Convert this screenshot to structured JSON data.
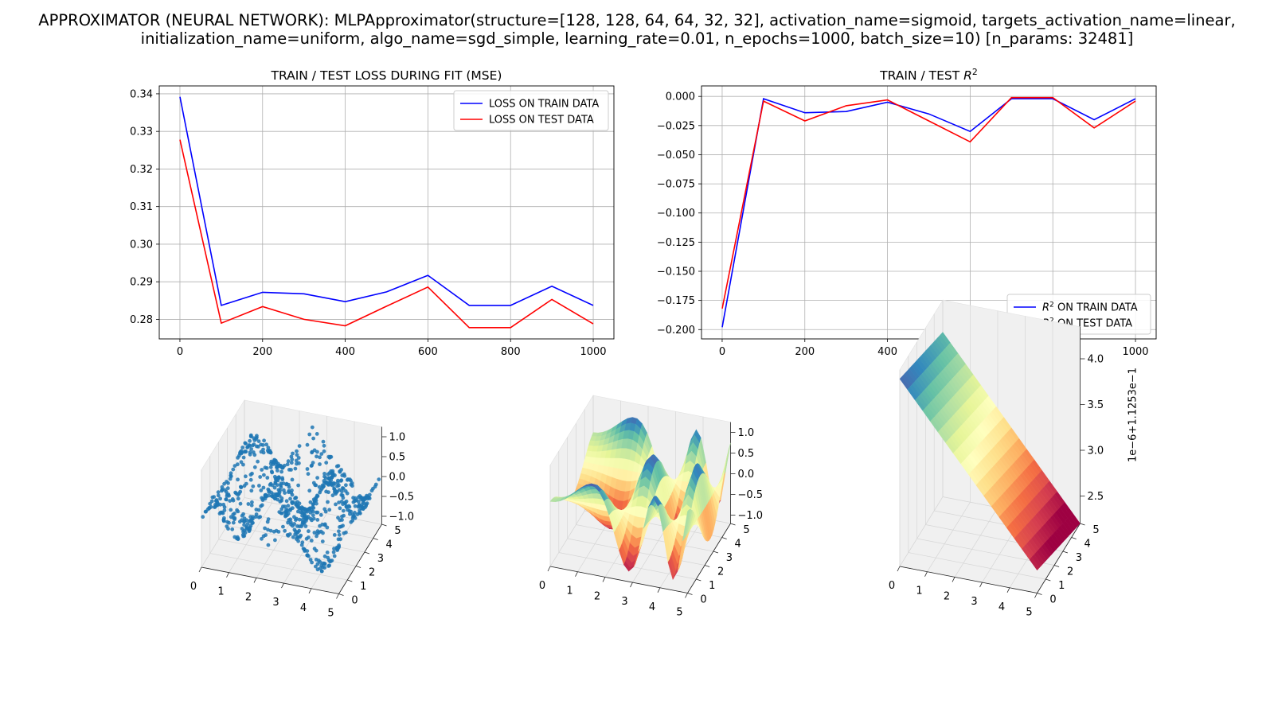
{
  "figure": {
    "title_lines": [
      "APPROXIMATOR (NEURAL NETWORK): MLPApproximator(structure=[128, 128, 64, 64, 32, 32], activation_name=sigmoid, targets_activation_name=linear,",
      "initialization_name=uniform, algo_name=sgd_simple, learning_rate=0.01, n_epochs=1000, batch_size=10) [n_params: 32481]"
    ]
  },
  "chart_data": [
    {
      "type": "line",
      "title": "TRAIN / TEST LOSS DURING FIT (MSE)",
      "xlabel": "",
      "ylabel": "",
      "x": [
        0,
        100,
        200,
        300,
        400,
        500,
        600,
        700,
        800,
        900,
        1000
      ],
      "xticks": [
        "0",
        "200",
        "400",
        "600",
        "800",
        "1000"
      ],
      "yticks": [
        "0.28",
        "0.29",
        "0.30",
        "0.31",
        "0.32",
        "0.33",
        "0.34"
      ],
      "xlim": [
        -50,
        1050
      ],
      "ylim": [
        0.2748,
        0.3421
      ],
      "grid": true,
      "legend_position": "upper right",
      "series": [
        {
          "name": "LOSS ON TRAIN DATA",
          "color": "#0000ff",
          "values": [
            0.3392,
            0.2837,
            0.2872,
            0.2868,
            0.2847,
            0.2873,
            0.2917,
            0.2837,
            0.2837,
            0.2888,
            0.2837
          ]
        },
        {
          "name": "LOSS ON TEST DATA",
          "color": "#ff0000",
          "values": [
            0.3278,
            0.279,
            0.2834,
            0.28,
            0.2783,
            0.2835,
            0.2886,
            0.2778,
            0.2778,
            0.2853,
            0.2788
          ]
        }
      ]
    },
    {
      "type": "line",
      "title_prefix": "TRAIN / TEST ",
      "title_math": "R",
      "title_sup": "2",
      "xlabel": "",
      "ylabel": "",
      "x": [
        0,
        100,
        200,
        300,
        400,
        500,
        600,
        700,
        800,
        900,
        1000
      ],
      "xticks": [
        "0",
        "200",
        "400",
        "600",
        "800",
        "1000"
      ],
      "yticks": [
        "0.000",
        "−0.025",
        "−0.050",
        "−0.075",
        "−0.100",
        "−0.125",
        "−0.150",
        "−0.175",
        "−0.200"
      ],
      "xlim": [
        -50,
        1050
      ],
      "ylim": [
        -0.208,
        0.009
      ],
      "grid": true,
      "legend_position": "lower right",
      "series": [
        {
          "name_math": "R",
          "name_sup": "2",
          "name_suffix": " ON TRAIN DATA",
          "color": "#0000ff",
          "values": [
            -0.198,
            -0.002,
            -0.014,
            -0.013,
            -0.005,
            -0.015,
            -0.03,
            -0.002,
            -0.002,
            -0.02,
            -0.002
          ]
        },
        {
          "name_math": "R",
          "name_sup": "2",
          "name_suffix": " ON TEST DATA",
          "color": "#ff0000",
          "values": [
            -0.182,
            -0.004,
            -0.021,
            -0.008,
            -0.003,
            -0.021,
            -0.039,
            -0.001,
            -0.001,
            -0.027,
            -0.004
          ]
        }
      ]
    },
    {
      "type": "scatter",
      "projection": "3d",
      "description_values": "training samples (x1, x2 in [0, 5], y in [-1, 1])",
      "color": "#1f77b4",
      "xticks": [
        "0",
        "1",
        "2",
        "3",
        "4",
        "5"
      ],
      "yticks": [
        "0",
        "1",
        "2",
        "3",
        "4",
        "5"
      ],
      "zticks": [
        "−1.0",
        "−0.5",
        "0.0",
        "0.5",
        "1.0"
      ]
    },
    {
      "type": "surface",
      "projection": "3d",
      "colormap": "Spectral",
      "xticks": [
        "0",
        "1",
        "2",
        "3",
        "4",
        "5"
      ],
      "yticks": [
        "0",
        "1",
        "2",
        "3",
        "4",
        "5"
      ],
      "zticks": [
        "−1.0",
        "−0.5",
        "0.0",
        "0.5",
        "1.0"
      ]
    },
    {
      "type": "surface",
      "projection": "3d",
      "colormap": "Spectral",
      "xticks": [
        "0",
        "1",
        "2",
        "3",
        "4",
        "5"
      ],
      "yticks": [
        "0",
        "1",
        "2",
        "3",
        "4",
        "5"
      ],
      "zticks": [
        "2.5",
        "3.0",
        "3.5",
        "4.0"
      ],
      "zlabel": "1e−6+1.1253e−1"
    }
  ]
}
